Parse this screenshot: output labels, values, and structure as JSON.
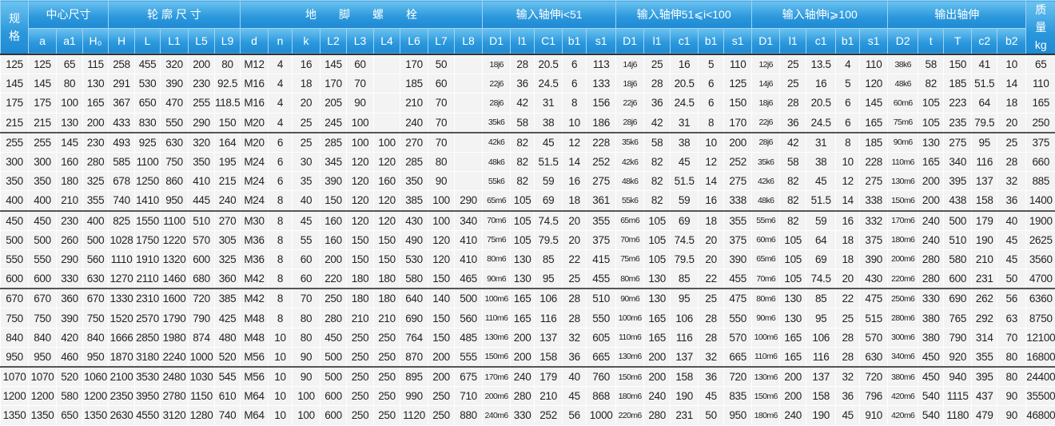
{
  "colors": {
    "header_top": "#6cc3f0",
    "header_bottom": "#1f89d2",
    "body_bg": "#f3f3f3"
  },
  "header": {
    "groups": [
      {
        "label": "规格",
        "rowspan": 2,
        "colspan": 1
      },
      {
        "label": "中心尺寸",
        "colspan": 3
      },
      {
        "label": "轮 廓 尺 寸",
        "colspan": 5
      },
      {
        "label": "地　　脚　　螺　　栓",
        "colspan": 9
      },
      {
        "label": "输入轴伸i<51",
        "colspan": 5
      },
      {
        "label": "输入轴伸51⩽i<100",
        "colspan": 5
      },
      {
        "label": "输入轴伸i⩾100",
        "colspan": 5
      },
      {
        "label": "输出轴伸",
        "colspan": 5
      },
      {
        "label": "质量 kg",
        "rowspan": 2,
        "colspan": 1
      }
    ],
    "columns": [
      "a",
      "a1",
      "H₀",
      "H",
      "L",
      "L1",
      "L5",
      "L9",
      "d",
      "n",
      "k",
      "L2",
      "L3",
      "L4",
      "L6",
      "L7",
      "L8",
      "D1",
      "l1",
      "C1",
      "b1",
      "s1",
      "D1",
      "l1",
      "c1",
      "b1",
      "s1",
      "D1",
      "l1",
      "c1",
      "b1",
      "s1",
      "D2",
      "t",
      "T",
      "c2",
      "b2"
    ]
  },
  "rows": [
    [
      "125",
      "125",
      "65",
      "115",
      "258",
      "455",
      "320",
      "200",
      "80",
      "M12",
      "4",
      "16",
      "145",
      "60",
      "",
      "170",
      "50",
      "",
      "18j6",
      "28",
      "20.5",
      "6",
      "113",
      "14j6",
      "25",
      "16",
      "5",
      "110",
      "12j6",
      "25",
      "13.5",
      "4",
      "110",
      "38k6",
      "58",
      "150",
      "41",
      "10",
      "65"
    ],
    [
      "145",
      "145",
      "80",
      "130",
      "291",
      "530",
      "390",
      "230",
      "92.5",
      "M16",
      "4",
      "18",
      "170",
      "70",
      "",
      "185",
      "60",
      "",
      "22j6",
      "36",
      "24.5",
      "6",
      "133",
      "18j6",
      "28",
      "20.5",
      "6",
      "125",
      "14j6",
      "25",
      "16",
      "5",
      "120",
      "48k6",
      "82",
      "185",
      "51.5",
      "14",
      "110"
    ],
    [
      "175",
      "175",
      "100",
      "165",
      "367",
      "650",
      "470",
      "255",
      "118.5",
      "M16",
      "4",
      "20",
      "205",
      "90",
      "",
      "210",
      "70",
      "",
      "28j6",
      "42",
      "31",
      "8",
      "156",
      "22j6",
      "36",
      "24.5",
      "6",
      "150",
      "18j6",
      "28",
      "20.5",
      "6",
      "145",
      "60m6",
      "105",
      "223",
      "64",
      "18",
      "165"
    ],
    [
      "215",
      "215",
      "130",
      "200",
      "433",
      "830",
      "550",
      "290",
      "150",
      "M20",
      "4",
      "25",
      "245",
      "100",
      "",
      "240",
      "70",
      "",
      "35k6",
      "58",
      "38",
      "10",
      "186",
      "28j6",
      "42",
      "31",
      "8",
      "170",
      "22j6",
      "36",
      "24.5",
      "6",
      "165",
      "75m6",
      "105",
      "235",
      "79.5",
      "20",
      "250"
    ],
    [
      "255",
      "255",
      "145",
      "230",
      "493",
      "925",
      "630",
      "320",
      "164",
      "M20",
      "6",
      "25",
      "285",
      "100",
      "100",
      "270",
      "70",
      "",
      "42k6",
      "82",
      "45",
      "12",
      "228",
      "35k6",
      "58",
      "38",
      "10",
      "200",
      "28j6",
      "42",
      "31",
      "8",
      "185",
      "90m6",
      "130",
      "275",
      "95",
      "25",
      "375"
    ],
    [
      "300",
      "300",
      "160",
      "280",
      "585",
      "1100",
      "750",
      "350",
      "195",
      "M24",
      "6",
      "30",
      "345",
      "120",
      "120",
      "285",
      "80",
      "",
      "48k6",
      "82",
      "51.5",
      "14",
      "252",
      "42k6",
      "82",
      "45",
      "12",
      "252",
      "35k6",
      "58",
      "38",
      "10",
      "228",
      "110m6",
      "165",
      "340",
      "116",
      "28",
      "660"
    ],
    [
      "350",
      "350",
      "180",
      "325",
      "678",
      "1250",
      "860",
      "410",
      "215",
      "M24",
      "6",
      "35",
      "390",
      "120",
      "160",
      "350",
      "90",
      "",
      "55k6",
      "82",
      "59",
      "16",
      "275",
      "48k6",
      "82",
      "51.5",
      "14",
      "275",
      "42k6",
      "82",
      "45",
      "12",
      "275",
      "130m6",
      "200",
      "395",
      "137",
      "32",
      "885"
    ],
    [
      "400",
      "400",
      "210",
      "355",
      "740",
      "1410",
      "950",
      "445",
      "240",
      "M24",
      "8",
      "40",
      "150",
      "120",
      "120",
      "385",
      "100",
      "290",
      "65m6",
      "105",
      "69",
      "18",
      "361",
      "55k6",
      "82",
      "59",
      "16",
      "338",
      "48k6",
      "82",
      "51.5",
      "14",
      "338",
      "150m6",
      "200",
      "438",
      "158",
      "36",
      "1400"
    ],
    [
      "450",
      "450",
      "230",
      "400",
      "825",
      "1550",
      "1100",
      "510",
      "270",
      "M30",
      "8",
      "45",
      "160",
      "120",
      "120",
      "430",
      "100",
      "340",
      "70m6",
      "105",
      "74.5",
      "20",
      "355",
      "65m6",
      "105",
      "69",
      "18",
      "355",
      "55m6",
      "82",
      "59",
      "16",
      "332",
      "170m6",
      "240",
      "500",
      "179",
      "40",
      "1900"
    ],
    [
      "500",
      "500",
      "260",
      "500",
      "1028",
      "1750",
      "1220",
      "570",
      "305",
      "M36",
      "8",
      "55",
      "160",
      "150",
      "150",
      "490",
      "120",
      "410",
      "75m6",
      "105",
      "79.5",
      "20",
      "375",
      "70m6",
      "105",
      "74.5",
      "20",
      "375",
      "60m6",
      "105",
      "64",
      "18",
      "375",
      "180m6",
      "240",
      "510",
      "190",
      "45",
      "2625"
    ],
    [
      "550",
      "550",
      "290",
      "560",
      "1110",
      "1910",
      "1320",
      "600",
      "325",
      "M36",
      "8",
      "60",
      "200",
      "150",
      "150",
      "530",
      "120",
      "410",
      "80m6",
      "130",
      "85",
      "22",
      "415",
      "75m6",
      "105",
      "79.5",
      "20",
      "390",
      "65m6",
      "105",
      "69",
      "18",
      "390",
      "200m6",
      "280",
      "580",
      "210",
      "45",
      "3560"
    ],
    [
      "600",
      "600",
      "330",
      "630",
      "1270",
      "2110",
      "1460",
      "680",
      "360",
      "M42",
      "8",
      "60",
      "220",
      "180",
      "180",
      "580",
      "150",
      "465",
      "90m6",
      "130",
      "95",
      "25",
      "455",
      "80m6",
      "130",
      "85",
      "22",
      "455",
      "70m6",
      "105",
      "74.5",
      "20",
      "430",
      "220m6",
      "280",
      "600",
      "231",
      "50",
      "4700"
    ],
    [
      "670",
      "670",
      "360",
      "670",
      "1330",
      "2310",
      "1600",
      "720",
      "385",
      "M42",
      "8",
      "70",
      "250",
      "180",
      "180",
      "640",
      "140",
      "500",
      "100m6",
      "165",
      "106",
      "28",
      "510",
      "90m6",
      "130",
      "95",
      "25",
      "475",
      "80m6",
      "130",
      "85",
      "22",
      "475",
      "250m6",
      "330",
      "690",
      "262",
      "56",
      "6360"
    ],
    [
      "750",
      "750",
      "390",
      "750",
      "1520",
      "2570",
      "1790",
      "790",
      "425",
      "M48",
      "8",
      "80",
      "280",
      "210",
      "210",
      "690",
      "150",
      "560",
      "110m6",
      "165",
      "116",
      "28",
      "550",
      "100m6",
      "165",
      "106",
      "28",
      "550",
      "90m6",
      "130",
      "95",
      "25",
      "515",
      "280m6",
      "380",
      "765",
      "292",
      "63",
      "8750"
    ],
    [
      "840",
      "840",
      "420",
      "840",
      "1666",
      "2850",
      "1980",
      "874",
      "480",
      "M48",
      "10",
      "80",
      "450",
      "250",
      "250",
      "764",
      "150",
      "485",
      "130m6",
      "200",
      "137",
      "32",
      "605",
      "110m6",
      "165",
      "116",
      "28",
      "570",
      "100m6",
      "165",
      "106",
      "28",
      "570",
      "300m6",
      "380",
      "790",
      "314",
      "70",
      "12100"
    ],
    [
      "950",
      "950",
      "460",
      "950",
      "1870",
      "3180",
      "2240",
      "1000",
      "520",
      "M56",
      "10",
      "90",
      "500",
      "250",
      "250",
      "870",
      "200",
      "555",
      "150m6",
      "200",
      "158",
      "36",
      "665",
      "130m6",
      "200",
      "137",
      "32",
      "665",
      "110m6",
      "165",
      "116",
      "28",
      "630",
      "340m6",
      "450",
      "920",
      "355",
      "80",
      "16800"
    ],
    [
      "1070",
      "1070",
      "520",
      "1060",
      "2100",
      "3530",
      "2480",
      "1030",
      "545",
      "M56",
      "10",
      "90",
      "500",
      "250",
      "250",
      "895",
      "200",
      "675",
      "170m6",
      "240",
      "179",
      "40",
      "760",
      "150m6",
      "200",
      "158",
      "36",
      "720",
      "130m6",
      "200",
      "137",
      "32",
      "720",
      "380m6",
      "450",
      "940",
      "395",
      "80",
      "24400"
    ],
    [
      "1200",
      "1200",
      "580",
      "1200",
      "2350",
      "3950",
      "2780",
      "1150",
      "610",
      "M64",
      "10",
      "100",
      "600",
      "250",
      "250",
      "990",
      "250",
      "710",
      "200m6",
      "280",
      "210",
      "45",
      "868",
      "180m6",
      "240",
      "190",
      "45",
      "835",
      "150m6",
      "200",
      "158",
      "36",
      "796",
      "420m6",
      "540",
      "1115",
      "437",
      "90",
      "35500"
    ],
    [
      "1350",
      "1350",
      "650",
      "1350",
      "2630",
      "4550",
      "3120",
      "1280",
      "740",
      "M64",
      "10",
      "100",
      "600",
      "250",
      "250",
      "1120",
      "250",
      "880",
      "240m6",
      "330",
      "252",
      "56",
      "1000",
      "220m6",
      "280",
      "231",
      "50",
      "950",
      "180m6",
      "240",
      "190",
      "45",
      "910",
      "420m6",
      "540",
      "1180",
      "479",
      "90",
      "46800"
    ]
  ]
}
